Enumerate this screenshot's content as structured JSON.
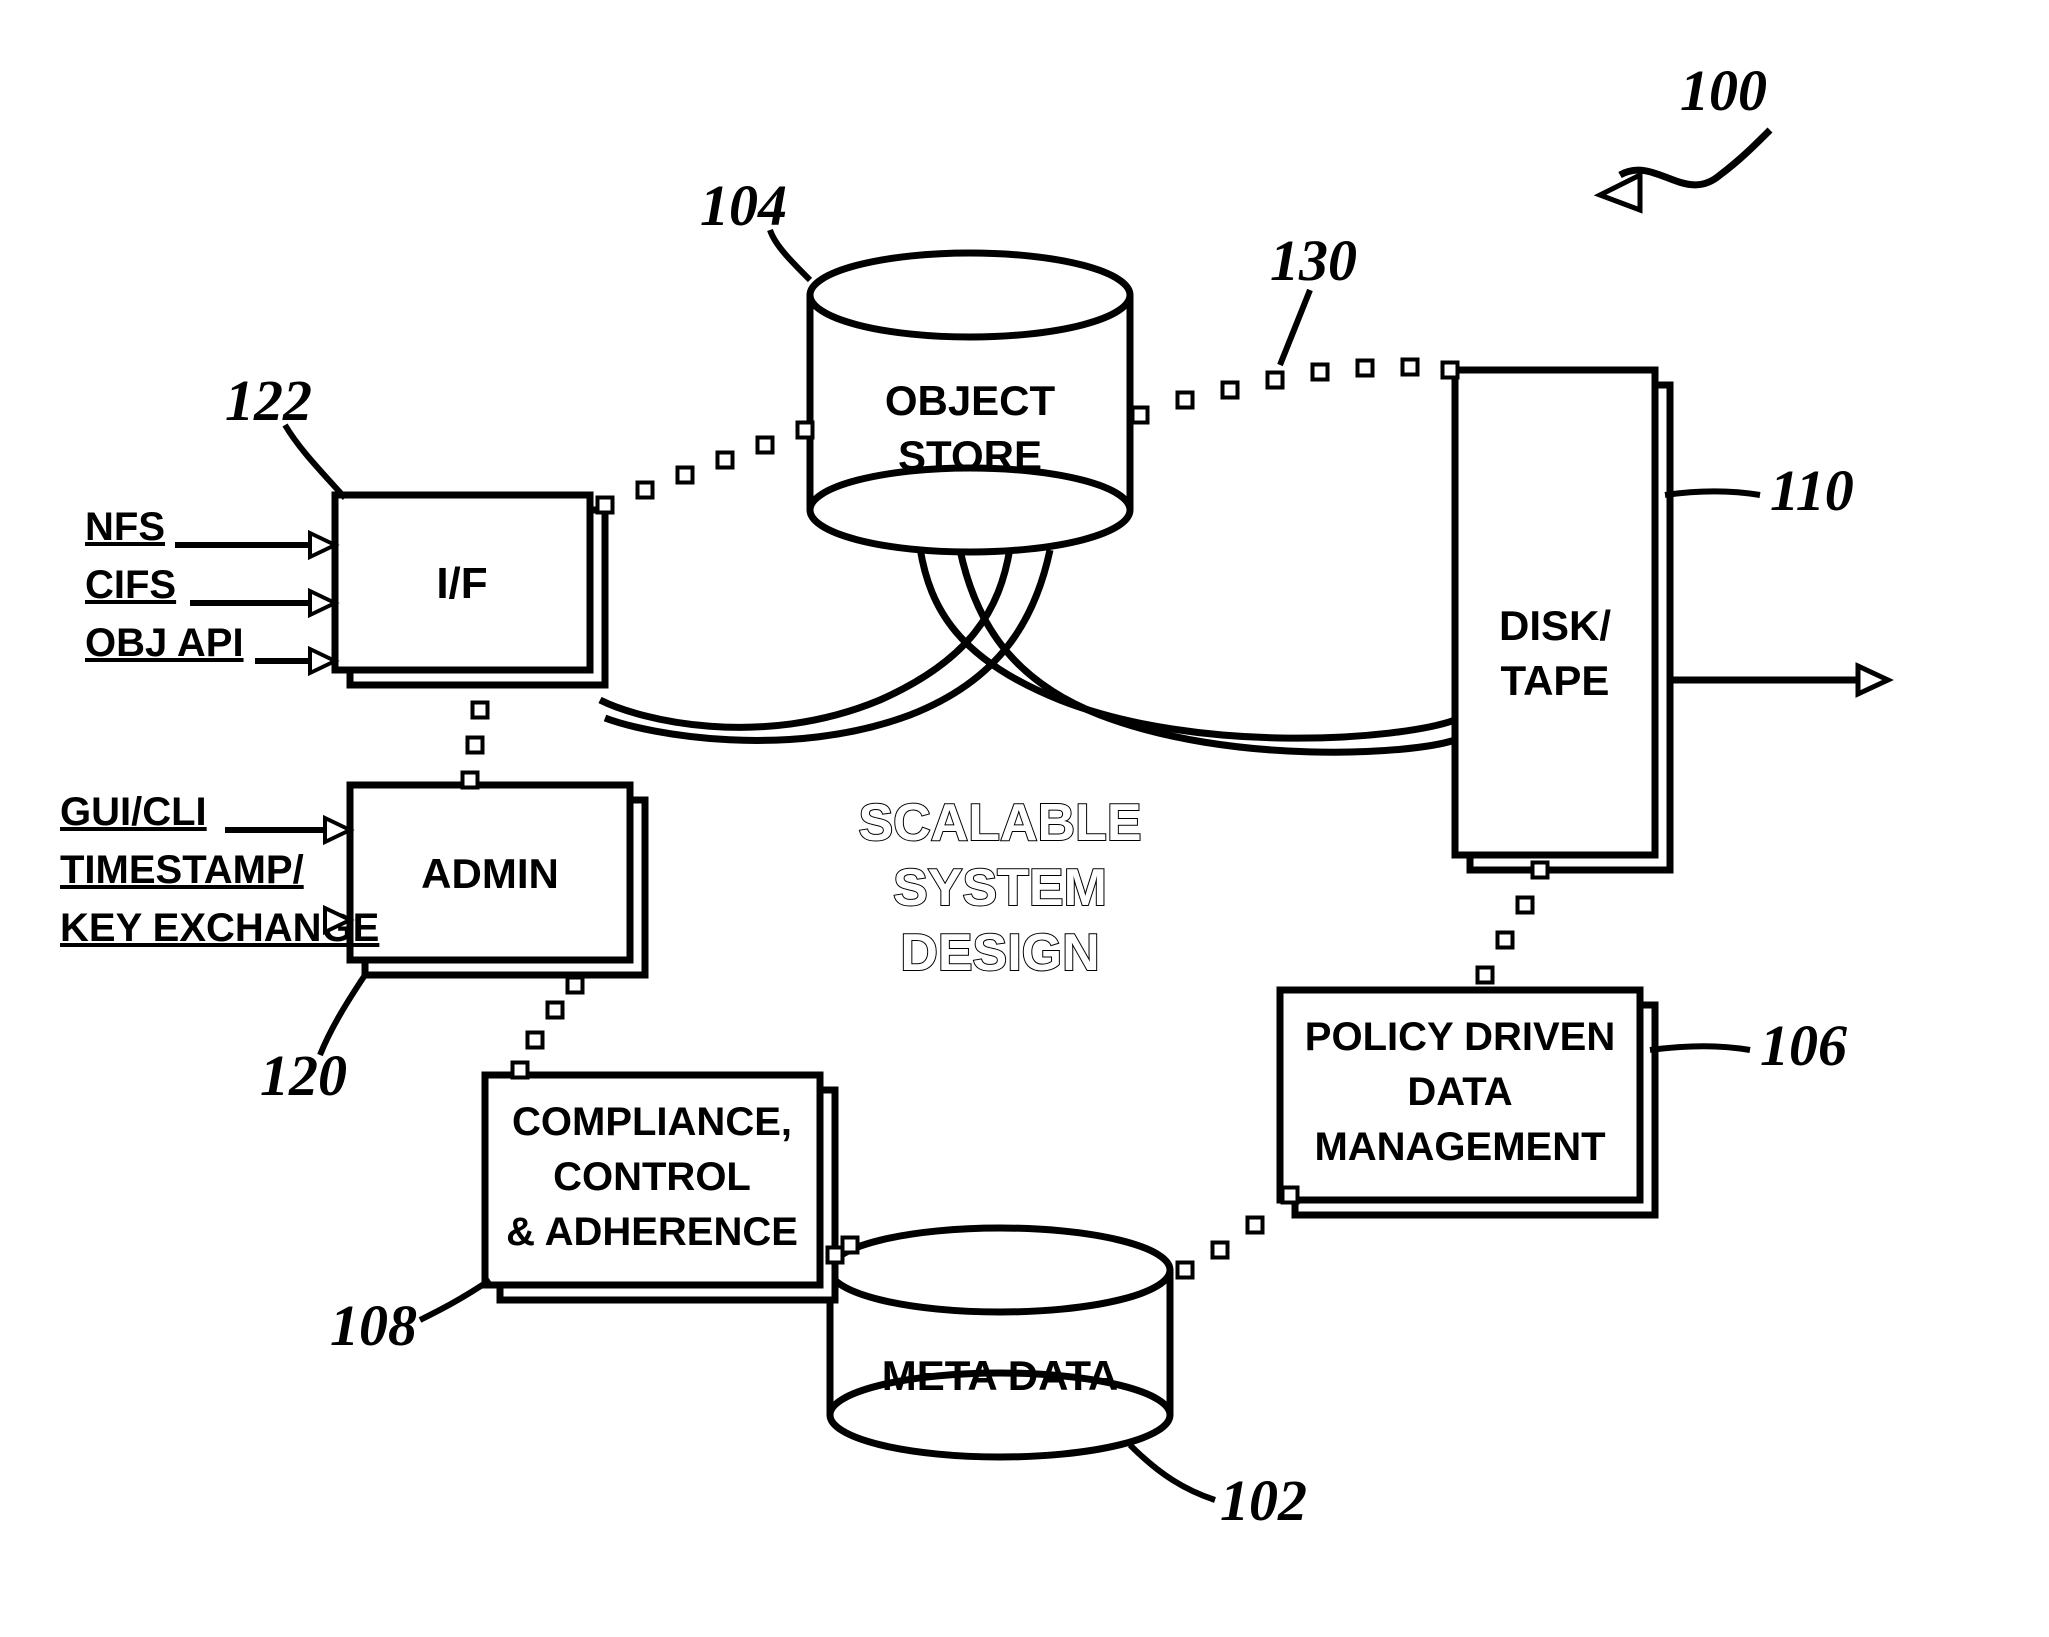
{
  "diagram": {
    "type": "flowchart",
    "background_color": "#ffffff",
    "stroke_color": "#000000",
    "stroke_width": 7,
    "dotted_square_size": 15,
    "ref_font_size": 58,
    "box_font_size": 42,
    "input_font_size": 40,
    "center_font_size": 52,
    "nodes": {
      "object_store": {
        "label_line1": "OBJECT",
        "label_line2": "STORE",
        "ref": "104",
        "shape": "cylinder"
      },
      "meta_data": {
        "label": "META DATA",
        "ref": "102",
        "shape": "cylinder"
      },
      "if_box": {
        "label": "I/F",
        "ref": "122",
        "shape": "stackbox"
      },
      "admin_box": {
        "label": "ADMIN",
        "ref": "120",
        "shape": "stackbox"
      },
      "compliance_box": {
        "label_line1": "COMPLIANCE,",
        "label_line2": "CONTROL",
        "label_line3": "& ADHERENCE",
        "ref": "108",
        "shape": "stackbox"
      },
      "policy_box": {
        "label_line1": "POLICY DRIVEN",
        "label_line2": "DATA",
        "label_line3": "MANAGEMENT",
        "ref": "106",
        "shape": "stackbox"
      },
      "disk_tape": {
        "label_line1": "DISK/",
        "label_line2": "TAPE",
        "ref": "110",
        "shape": "stackbox"
      }
    },
    "external_inputs": {
      "if_inputs": [
        "NFS",
        "CIFS",
        "OBJ API"
      ],
      "admin_inputs": [
        "GUI/CLI",
        "TIMESTAMP/",
        "KEY EXCHANGE"
      ]
    },
    "path_ref": "130",
    "figure_ref": "100",
    "center_text": {
      "line1": "SCALABLE",
      "line2": "SYSTEM",
      "line3": "DESIGN"
    }
  }
}
